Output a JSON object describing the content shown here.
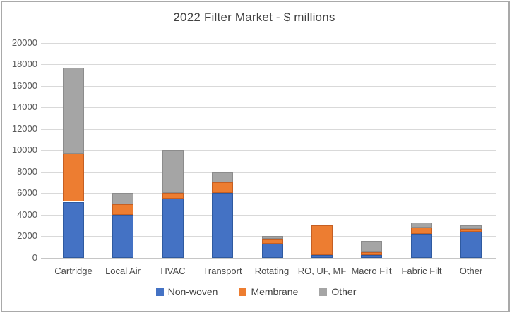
{
  "chart_data": {
    "type": "bar",
    "stacked": true,
    "title": "2022 Filter Market - $ millions",
    "categories": [
      "Cartridge",
      "Local Air",
      "HVAC",
      "Transport",
      "Rotating",
      "RO, UF, MF",
      "Macro Filt",
      "Fabric Filt",
      "Other"
    ],
    "series": [
      {
        "name": "Non-woven",
        "color": "#4472c4",
        "border_color": "#2f5aa0",
        "values": [
          5200,
          4000,
          5500,
          6000,
          1300,
          250,
          250,
          2200,
          2400
        ]
      },
      {
        "name": "Membrane",
        "color": "#ed7d31",
        "border_color": "#c55f23",
        "values": [
          4500,
          1000,
          500,
          1000,
          450,
          2750,
          250,
          600,
          300
        ]
      },
      {
        "name": "Other",
        "color": "#a5a5a5",
        "border_color": "#8c8c8c",
        "values": [
          8000,
          1000,
          4000,
          1000,
          250,
          0,
          1100,
          500,
          300
        ]
      }
    ],
    "totals": [
      17700,
      6000,
      10000,
      8000,
      2000,
      3000,
      1600,
      3300,
      3000
    ],
    "xlabel": "",
    "ylabel": "",
    "ylim": [
      0,
      20000
    ],
    "ytick_step": 2000,
    "yticks": [
      "0",
      "2000",
      "4000",
      "6000",
      "8000",
      "10000",
      "12000",
      "14000",
      "16000",
      "18000",
      "20000"
    ],
    "grid": true,
    "legend_position": "bottom",
    "legend_entries": [
      "Non-woven",
      "Membrane",
      "Other"
    ]
  },
  "frame": {
    "background": "#ffffff",
    "border_color": "#a9a9a9",
    "gridline_color": "#d9d9d9",
    "axis_line_color": "#c6c6c6",
    "title_color": "#404040",
    "tick_label_color": "#595959",
    "category_label_color": "#474747",
    "legend_text_color": "#404040"
  }
}
